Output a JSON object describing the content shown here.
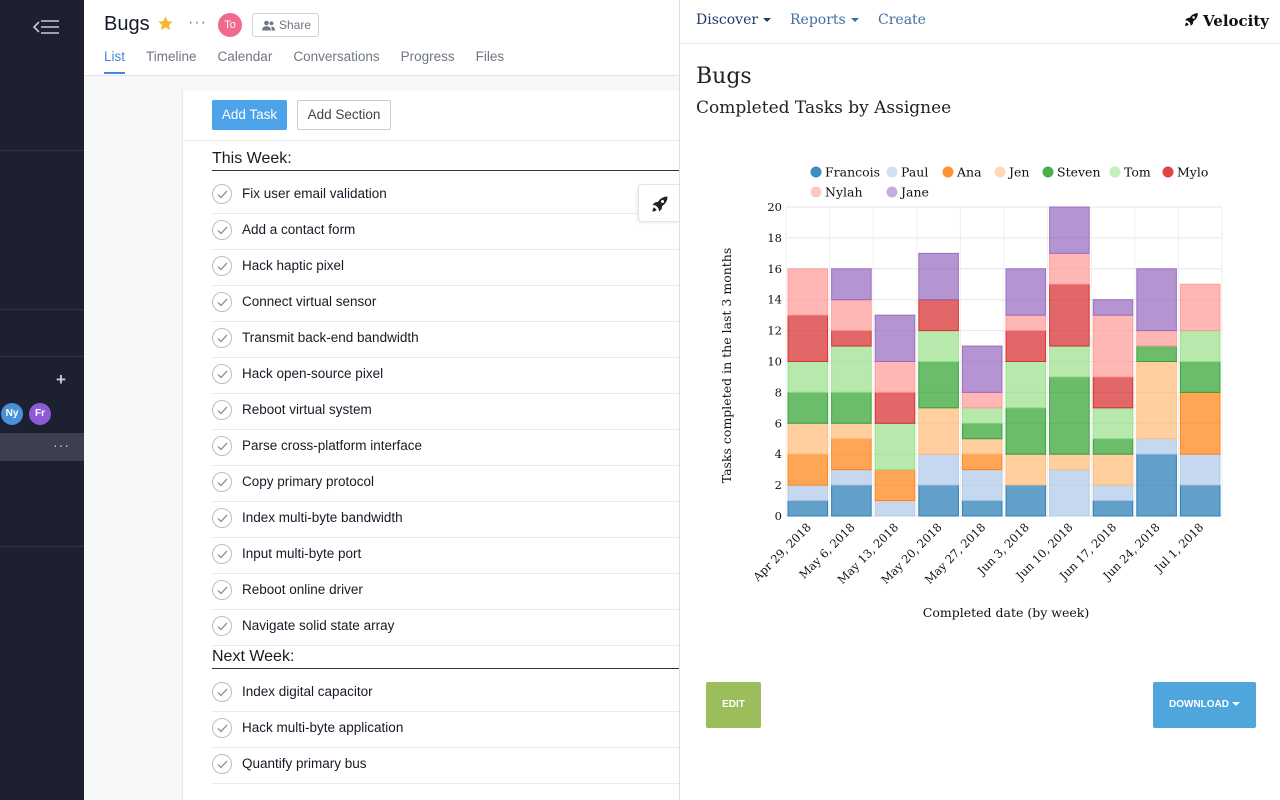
{
  "sidebar": {
    "avatars": [
      {
        "initials": "Ny",
        "color": "#4a90d9"
      },
      {
        "initials": "Fr",
        "color": "#8e5bd6"
      }
    ]
  },
  "header": {
    "title": "Bugs",
    "avatar": "To",
    "share_label": "Share",
    "tabs": [
      "List",
      "Timeline",
      "Calendar",
      "Conversations",
      "Progress",
      "Files"
    ],
    "active_tab": "List"
  },
  "toolbar": {
    "add_task": "Add Task",
    "add_section": "Add Section"
  },
  "sections": [
    {
      "title": "This Week:",
      "tasks": [
        "Fix user email validation",
        "Add a contact form",
        "Hack haptic pixel",
        "Connect virtual sensor",
        "Transmit back-end bandwidth",
        "Hack open-source pixel",
        "Reboot virtual system",
        "Parse cross-platform interface",
        "Copy primary protocol",
        "Index multi-byte bandwidth",
        "Input multi-byte port",
        "Reboot online driver",
        "Navigate solid state array"
      ]
    },
    {
      "title": "Next Week:",
      "tasks": [
        "Index digital capacitor",
        "Hack multi-byte application",
        "Quantify primary bus"
      ]
    }
  ],
  "panel": {
    "nav": {
      "discover": "Discover",
      "reports": "Reports",
      "create": "Create"
    },
    "brand": "Velocity",
    "title": "Bugs",
    "subtitle": "Completed Tasks by Assignee",
    "edit_label": "EDIT",
    "download_label": "DOWNLOAD"
  },
  "chart_data": {
    "type": "bar",
    "stacked": true,
    "categories": [
      "Apr 29, 2018",
      "May 6, 2018",
      "May 13, 2018",
      "May 20, 2018",
      "May 27, 2018",
      "Jun 3, 2018",
      "Jun 10, 2018",
      "Jun 17, 2018",
      "Jun 24, 2018",
      "Jul 1, 2018"
    ],
    "xlabel": "Completed date (by week)",
    "ylabel": "Tasks completed in the last 3 months",
    "ylim": [
      0,
      20
    ],
    "yticks": [
      0,
      2,
      4,
      6,
      8,
      10,
      12,
      14,
      16,
      18,
      20
    ],
    "grid": true,
    "legend": "top",
    "series": [
      {
        "name": "Francois",
        "color": "#1f77b4",
        "values": [
          1,
          2,
          0,
          2,
          1,
          2,
          0,
          1,
          4,
          2
        ]
      },
      {
        "name": "Paul",
        "color": "#aec7e8",
        "values": [
          1,
          1,
          1,
          2,
          2,
          0,
          3,
          1,
          1,
          2
        ]
      },
      {
        "name": "Ana",
        "color": "#ff7f0e",
        "values": [
          2,
          2,
          2,
          0,
          1,
          0,
          0,
          0,
          0,
          4
        ]
      },
      {
        "name": "Jen",
        "color": "#ffbb78",
        "values": [
          2,
          1,
          0,
          3,
          1,
          2,
          1,
          2,
          5,
          0
        ]
      },
      {
        "name": "Steven",
        "color": "#2ca02c",
        "values": [
          2,
          2,
          0,
          3,
          1,
          3,
          5,
          1,
          1,
          2
        ]
      },
      {
        "name": "Tom",
        "color": "#98df8a",
        "values": [
          2,
          3,
          3,
          2,
          1,
          3,
          2,
          2,
          0,
          2
        ]
      },
      {
        "name": "Mylo",
        "color": "#d62728",
        "values": [
          3,
          1,
          2,
          2,
          0,
          2,
          4,
          2,
          0,
          0
        ]
      },
      {
        "name": "Nylah",
        "color": "#ff9896",
        "values": [
          3,
          2,
          2,
          0,
          1,
          1,
          2,
          4,
          1,
          3
        ]
      },
      {
        "name": "Jane",
        "color": "#9467bd",
        "values": [
          0,
          2,
          3,
          3,
          3,
          3,
          3,
          1,
          4,
          0
        ]
      }
    ]
  }
}
